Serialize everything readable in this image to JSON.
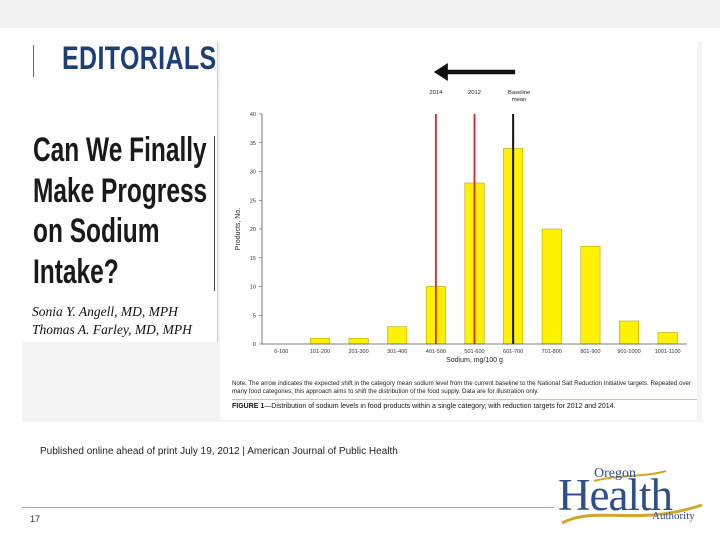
{
  "slide": {
    "section_title": "EDITORIALS",
    "article_title_lines": [
      "Can We Finally",
      "Make Progress",
      "on Sodium",
      "Intake?"
    ],
    "authors": [
      "Sonia Y. Angell, MD, MPH",
      "Thomas A. Farley, MD, MPH"
    ],
    "published": "Published online ahead of print July 19, 2012 | American Journal of Public Health",
    "page_number": "17",
    "logo": {
      "oregon": "Oregon",
      "health": "Health",
      "authority": "Authority"
    }
  },
  "colors": {
    "title_blue": "#1c3f78",
    "bar_yellow": "#fef200",
    "bar_edge": "#b8a400",
    "target_red": "#d7262c",
    "baseline_black": "#111111",
    "rule_gold": "#d4a72c"
  },
  "chart_data": {
    "type": "bar",
    "categories": [
      "0-100",
      "101-200",
      "201-300",
      "301-400",
      "401-500",
      "501-600",
      "601-700",
      "701-800",
      "801-900",
      "901-1000",
      "1001-1100"
    ],
    "values": [
      0,
      1,
      1,
      3,
      10,
      28,
      34,
      20,
      17,
      4,
      2
    ],
    "xlabel": "Sodium, mg/100 g",
    "ylabel": "Products, No.",
    "ylim": [
      0,
      40
    ],
    "yticks": [
      0,
      5,
      10,
      15,
      20,
      25,
      30,
      35,
      40
    ],
    "reference_lines": [
      {
        "label": "2014",
        "x": 450,
        "color": "#d7262c"
      },
      {
        "label": "2012",
        "x": 550,
        "color": "#d7262c"
      },
      {
        "label": "Baseline mean",
        "x": 650,
        "color": "#111111"
      }
    ],
    "arrow": "from Baseline mean toward 2014",
    "note": "Note. The arrow indicates the expected shift in the category mean sodium level from the current baseline to the National Salt Reduction Initiative targets. Repeated over many food categories, this approach aims to shift the distribution of the food supply. Data are for illustration only.",
    "caption_label": "FIGURE 1",
    "caption_text": "—Distribution of sodium levels in food products within a single category, with reduction targets for 2012 and 2014."
  }
}
